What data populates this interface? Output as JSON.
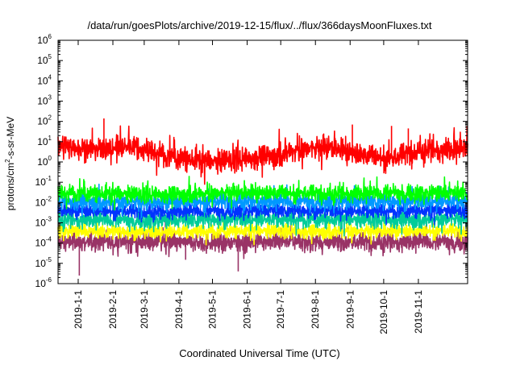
{
  "chart_data": {
    "type": "line",
    "title": "/data/run/goesPlots/archive/2019-12-15/flux/../flux/366daysMoonFluxes.txt",
    "xlabel": "Coordinated Universal Time (UTC)",
    "ylabel": "protons/cm2-s-sr-MeV",
    "ylabel_parts": {
      "pre": "protons/cm",
      "sup": "2",
      "post": "-s-sr-MeV"
    },
    "yscale": "log",
    "ylim": [
      1e-06,
      1000000.0
    ],
    "y_ticks": [
      {
        "value": 1e-06,
        "base": "10",
        "exp": "-6"
      },
      {
        "value": 1e-05,
        "base": "10",
        "exp": "-5"
      },
      {
        "value": 0.0001,
        "base": "10",
        "exp": "-4"
      },
      {
        "value": 0.001,
        "base": "10",
        "exp": "-3"
      },
      {
        "value": 0.01,
        "base": "10",
        "exp": "-2"
      },
      {
        "value": 0.1,
        "base": "10",
        "exp": "-1"
      },
      {
        "value": 1,
        "base": "10",
        "exp": "0"
      },
      {
        "value": 10,
        "base": "10",
        "exp": "1"
      },
      {
        "value": 100,
        "base": "10",
        "exp": "2"
      },
      {
        "value": 1000,
        "base": "10",
        "exp": "3"
      },
      {
        "value": 10000,
        "base": "10",
        "exp": "4"
      },
      {
        "value": 100000,
        "base": "10",
        "exp": "5"
      },
      {
        "value": 1000000,
        "base": "10",
        "exp": "6"
      }
    ],
    "xlim": [
      "2018-12-14",
      "2019-12-15"
    ],
    "x_ticks": [
      "2019-1-1",
      "2019-2-1",
      "2019-3-1",
      "2019-4-1",
      "2019-5-1",
      "2019-6-1",
      "2019-7-1",
      "2019-8-1",
      "2019-9-1",
      "2019-10-1",
      "2019-11-1"
    ],
    "x_tick_dates": [
      "2019-01-01",
      "2019-02-01",
      "2019-03-01",
      "2019-04-01",
      "2019-05-01",
      "2019-06-01",
      "2019-07-01",
      "2019-08-01",
      "2019-09-01",
      "2019-10-01",
      "2019-11-01"
    ],
    "grid": false,
    "legend": "none",
    "series": [
      {
        "color": "#993366",
        "noise": 0.4,
        "x": [
          "2018-12-14",
          "2019-01-15",
          "2019-03-01",
          "2019-05-01",
          "2019-07-01",
          "2019-09-01",
          "2019-11-01",
          "2019-12-15"
        ],
        "values": [
          0.00012,
          0.00011,
          0.00012,
          0.0001,
          0.00012,
          0.00011,
          0.00012,
          0.00011
        ],
        "dips": [
          {
            "x": "2019-01-02",
            "value": 2.5e-06
          },
          {
            "x": "2019-04-07",
            "value": 1.5e-05
          },
          {
            "x": "2019-05-24",
            "value": 4e-06
          }
        ]
      },
      {
        "color": "#ffff00",
        "noise": 0.3,
        "x": [
          "2018-12-14",
          "2019-03-01",
          "2019-06-01",
          "2019-09-01",
          "2019-12-15"
        ],
        "values": [
          0.0004,
          0.00035,
          0.0004,
          0.00038,
          0.0004
        ],
        "dips": []
      },
      {
        "color": "#00cc99",
        "noise": 0.35,
        "x": [
          "2018-12-14",
          "2019-03-01",
          "2019-06-01",
          "2019-09-01",
          "2019-12-15"
        ],
        "values": [
          0.0015,
          0.0013,
          0.0015,
          0.0014,
          0.0015
        ],
        "dips": []
      },
      {
        "color": "#0033ff",
        "noise": 0.3,
        "x": [
          "2018-12-14",
          "2019-03-01",
          "2019-06-01",
          "2019-09-01",
          "2019-12-15"
        ],
        "values": [
          0.004,
          0.0035,
          0.004,
          0.0038,
          0.004
        ],
        "dips": []
      },
      {
        "color": "#0099ff",
        "noise": 0.35,
        "x": [
          "2018-12-14",
          "2019-03-01",
          "2019-06-01",
          "2019-09-01",
          "2019-12-15"
        ],
        "values": [
          0.012,
          0.01,
          0.012,
          0.011,
          0.012
        ],
        "dips": []
      },
      {
        "color": "#00ff00",
        "noise": 0.35,
        "x": [
          "2018-12-14",
          "2019-03-01",
          "2019-06-01",
          "2019-09-01",
          "2019-12-15"
        ],
        "values": [
          0.03,
          0.025,
          0.03,
          0.028,
          0.03
        ],
        "dips": []
      },
      {
        "color": "#ff0000",
        "noise": 0.5,
        "x": [
          "2018-12-14",
          "2019-01-20",
          "2019-02-15",
          "2019-03-10",
          "2019-04-01",
          "2019-05-01",
          "2019-06-01",
          "2019-07-01",
          "2019-07-15",
          "2019-08-15",
          "2019-09-15",
          "2019-10-10",
          "2019-11-01",
          "2019-12-15"
        ],
        "values": [
          6,
          4,
          6,
          3,
          1.5,
          1.0,
          1.5,
          2.5,
          4,
          5,
          2,
          1.5,
          4,
          4
        ],
        "dips": [],
        "spikes": [
          {
            "x": "2019-01-24",
            "value": 140
          },
          {
            "x": "2019-09-03",
            "value": 70
          },
          {
            "x": "2019-10-08",
            "value": 60
          },
          {
            "x": "2019-10-23",
            "value": 45
          }
        ]
      }
    ]
  }
}
